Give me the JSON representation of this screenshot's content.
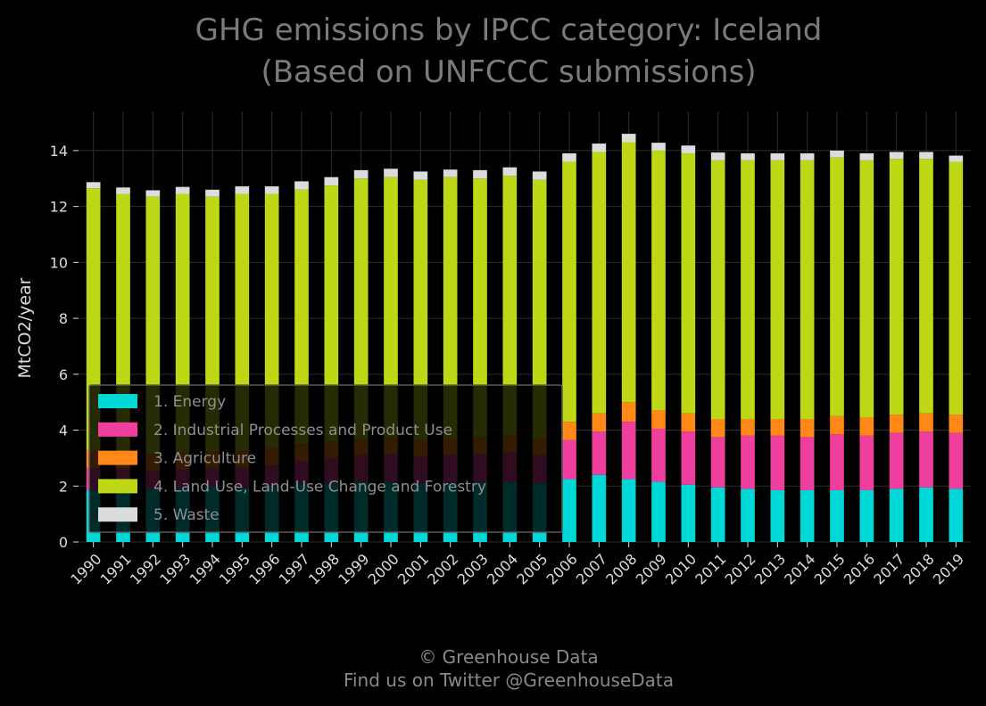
{
  "chart_data": {
    "type": "bar",
    "stacked": true,
    "title_line1": "GHG emissions by IPCC category: Iceland",
    "title_line2": "(Based on UNFCCC submissions)",
    "xlabel": "",
    "ylabel": "MtCO2/year",
    "ylim": [
      0,
      15.4
    ],
    "yticks": [
      0,
      2,
      4,
      6,
      8,
      10,
      12,
      14
    ],
    "grid": true,
    "legend_position": "lower-left",
    "categories": [
      "1990",
      "1991",
      "1992",
      "1993",
      "1994",
      "1995",
      "1996",
      "1997",
      "1998",
      "1999",
      "2000",
      "2001",
      "2002",
      "2003",
      "2004",
      "2005",
      "2006",
      "2007",
      "2008",
      "2009",
      "2010",
      "2011",
      "2012",
      "2013",
      "2014",
      "2015",
      "2016",
      "2017",
      "2018",
      "2019"
    ],
    "series": [
      {
        "name": "1. Energy",
        "color": "#00d8d8",
        "values": [
          1.85,
          1.95,
          1.9,
          1.95,
          2.0,
          1.95,
          2.0,
          2.1,
          2.1,
          2.15,
          2.15,
          2.1,
          2.1,
          2.15,
          2.15,
          2.1,
          2.25,
          2.4,
          2.25,
          2.15,
          2.05,
          1.95,
          1.9,
          1.85,
          1.85,
          1.85,
          1.85,
          1.9,
          1.95,
          1.9
        ]
      },
      {
        "name": "2. Industrial Processes and Product Use",
        "color": "#ee3e9e",
        "values": [
          0.8,
          0.65,
          0.65,
          0.65,
          0.65,
          0.7,
          0.75,
          0.8,
          0.9,
          0.95,
          1.0,
          0.95,
          1.0,
          1.0,
          1.05,
          1.0,
          1.4,
          1.55,
          2.05,
          1.9,
          1.9,
          1.8,
          1.9,
          1.95,
          1.9,
          2.0,
          1.95,
          2.0,
          2.0,
          2.0
        ]
      },
      {
        "name": "3. Agriculture",
        "color": "#ff8818",
        "values": [
          0.65,
          0.65,
          0.6,
          0.6,
          0.6,
          0.6,
          0.6,
          0.6,
          0.6,
          0.6,
          0.6,
          0.6,
          0.6,
          0.6,
          0.6,
          0.6,
          0.65,
          0.65,
          0.7,
          0.65,
          0.65,
          0.65,
          0.6,
          0.6,
          0.65,
          0.65,
          0.65,
          0.65,
          0.65,
          0.65
        ]
      },
      {
        "name": "4. Land Use, Land-Use Change and Forestry",
        "color": "#bed815",
        "values": [
          9.35,
          9.2,
          9.2,
          9.25,
          9.1,
          9.2,
          9.1,
          9.1,
          9.15,
          9.3,
          9.3,
          9.3,
          9.35,
          9.25,
          9.3,
          9.25,
          9.3,
          9.35,
          9.3,
          9.3,
          9.3,
          9.25,
          9.25,
          9.25,
          9.25,
          9.25,
          9.2,
          9.15,
          9.1,
          9.05
        ]
      },
      {
        "name": "5. Waste",
        "color": "#dcdcdc",
        "values": [
          0.22,
          0.23,
          0.23,
          0.25,
          0.25,
          0.27,
          0.27,
          0.3,
          0.3,
          0.3,
          0.3,
          0.3,
          0.27,
          0.3,
          0.3,
          0.3,
          0.3,
          0.3,
          0.3,
          0.28,
          0.28,
          0.28,
          0.25,
          0.25,
          0.25,
          0.25,
          0.25,
          0.25,
          0.25,
          0.22
        ]
      }
    ]
  },
  "footer": {
    "line1": "© Greenhouse Data",
    "line2": "Find us on Twitter @GreenhouseData"
  }
}
